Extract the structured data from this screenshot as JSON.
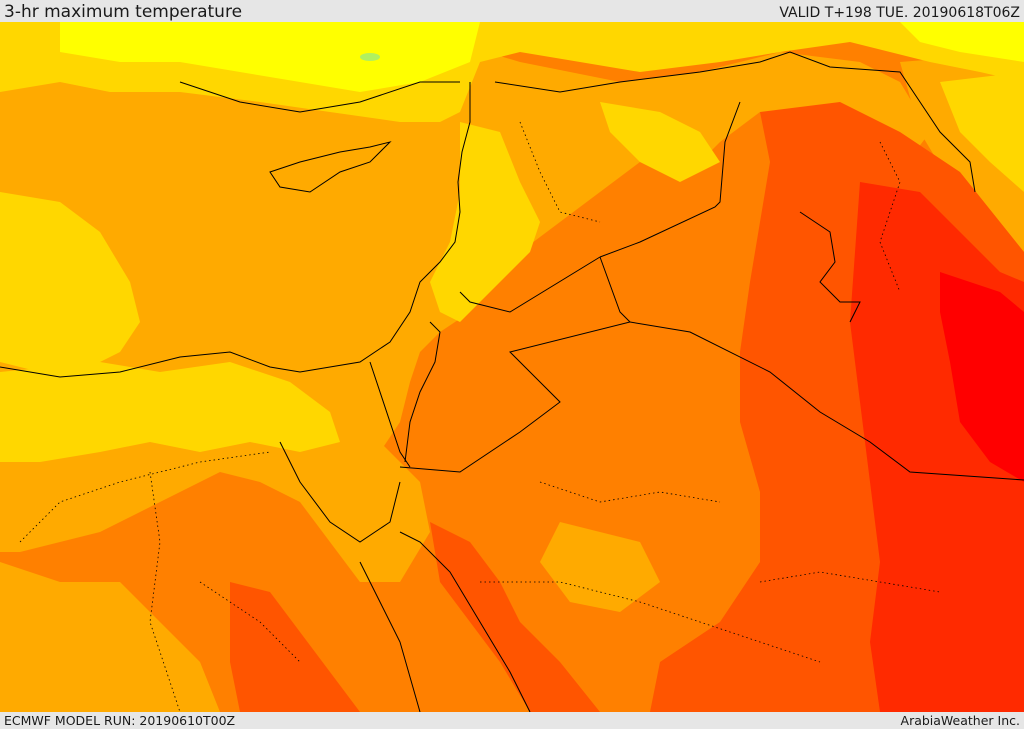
{
  "header": {
    "title": "3-hr maximum temperature",
    "valid": "VALID T+198 TUE. 20190618T06Z"
  },
  "footer": {
    "model_run": "ECMWF MODEL RUN: 20190610T00Z",
    "credit": "ArabiaWeather Inc."
  },
  "map": {
    "variable": "3-hr maximum temperature",
    "colors": {
      "light_yellow": "#ffff00",
      "yellow": "#ffd700",
      "light_orange": "#ffaa00",
      "orange": "#ff8000",
      "red_orange": "#ff5500",
      "red": "#ff2a00",
      "deep_red": "#ff0000",
      "pale_green": "#b0f060",
      "borders": "#000000"
    }
  }
}
